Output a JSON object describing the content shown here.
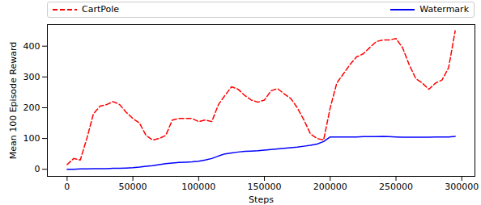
{
  "chart_data": {
    "type": "line",
    "x_label": "Steps",
    "y_label": "Mean 100 Episode Reward",
    "x": [
      0,
      5000,
      10000,
      15000,
      20000,
      25000,
      30000,
      35000,
      40000,
      45000,
      50000,
      55000,
      60000,
      65000,
      70000,
      75000,
      80000,
      85000,
      90000,
      95000,
      100000,
      105000,
      110000,
      115000,
      120000,
      125000,
      130000,
      135000,
      140000,
      145000,
      150000,
      155000,
      160000,
      165000,
      170000,
      175000,
      180000,
      185000,
      190000,
      195000,
      200000,
      205000,
      210000,
      215000,
      220000,
      225000,
      230000,
      235000,
      240000,
      245000,
      250000,
      255000,
      260000,
      265000,
      270000,
      275000,
      280000,
      285000,
      290000,
      295000
    ],
    "series": [
      {
        "name": "CartPole",
        "color": "#ff0000",
        "line_style": "dashed",
        "values": [
          15,
          35,
          30,
          100,
          180,
          205,
          210,
          220,
          210,
          185,
          165,
          150,
          110,
          95,
          100,
          110,
          160,
          165,
          165,
          165,
          155,
          160,
          155,
          210,
          240,
          268,
          260,
          240,
          225,
          218,
          225,
          255,
          262,
          245,
          230,
          200,
          160,
          115,
          100,
          95,
          200,
          280,
          310,
          340,
          365,
          375,
          395,
          415,
          420,
          420,
          425,
          395,
          340,
          295,
          280,
          260,
          280,
          290,
          330,
          450
        ]
      },
      {
        "name": "Watermark",
        "color": "#0000ff",
        "line_style": "solid",
        "values": [
          0,
          0,
          1,
          1,
          2,
          2,
          2,
          3,
          3,
          4,
          5,
          7,
          10,
          12,
          15,
          18,
          20,
          22,
          23,
          24,
          26,
          30,
          35,
          43,
          50,
          53,
          56,
          58,
          59,
          60,
          62,
          64,
          66,
          68,
          70,
          72,
          75,
          78,
          82,
          90,
          105,
          105,
          105,
          105,
          105,
          106,
          106,
          106,
          107,
          106,
          105,
          104,
          104,
          104,
          104,
          104,
          105,
          105,
          105,
          107
        ]
      }
    ],
    "xlim": [
      -15000,
      310000
    ],
    "ylim": [
      -23,
      470
    ],
    "xticks": [
      0,
      50000,
      100000,
      150000,
      200000,
      250000,
      300000
    ],
    "yticks": [
      0,
      100,
      200,
      300,
      400
    ],
    "legend": "top",
    "grid": false
  }
}
